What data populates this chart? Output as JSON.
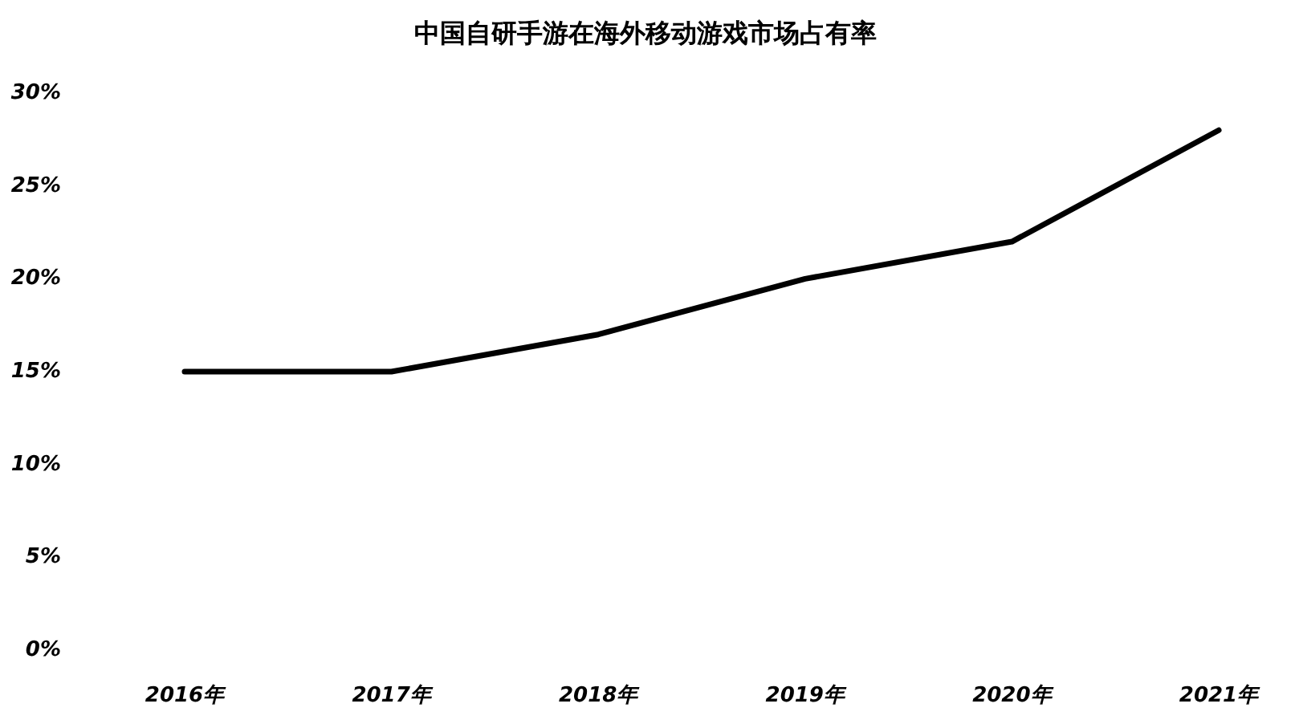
{
  "chart_data": {
    "type": "line",
    "title": "中国自研手游在海外移动游戏市场占有率",
    "categories": [
      "2016年",
      "2017年",
      "2018年",
      "2019年",
      "2020年",
      "2021年"
    ],
    "series": [
      {
        "color": "#000000",
        "values": [
          15,
          15,
          17,
          20,
          22,
          28
        ]
      }
    ],
    "ylim": [
      0,
      30
    ],
    "yticks": [
      {
        "value": 0,
        "label": "0%"
      },
      {
        "value": 5,
        "label": "5%"
      },
      {
        "value": 10,
        "label": "10%"
      },
      {
        "value": 15,
        "label": "15%"
      },
      {
        "value": 20,
        "label": "20%"
      },
      {
        "value": 25,
        "label": "25%"
      },
      {
        "value": 30,
        "label": "30%"
      }
    ],
    "marker": "none",
    "line_style": "solid"
  }
}
